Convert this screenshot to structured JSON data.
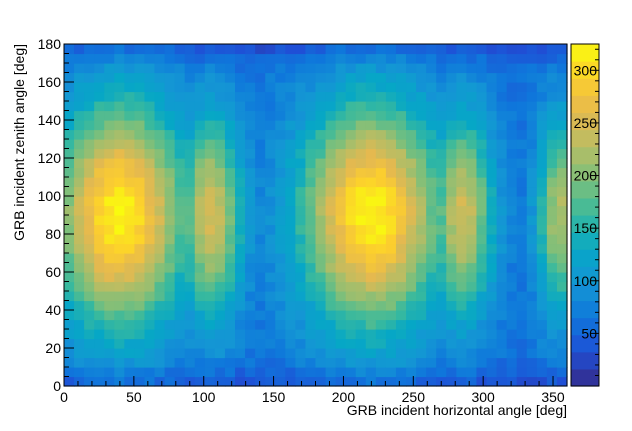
{
  "chart_data": {
    "type": "heatmap",
    "title": "",
    "xlabel": "GRB incident horizontal angle [deg]",
    "ylabel": "GRB incident zenith angle [deg]",
    "xlim": [
      0,
      360
    ],
    "ylim": [
      0,
      180
    ],
    "x_ticks": [
      "0",
      "50",
      "100",
      "150",
      "200",
      "250",
      "300",
      "350"
    ],
    "y_ticks": [
      "0",
      "20",
      "40",
      "60",
      "80",
      "100",
      "120",
      "140",
      "160",
      "180"
    ],
    "colorbar": {
      "range": [
        0,
        325
      ],
      "ticks": [
        "50",
        "100",
        "150",
        "200",
        "250",
        "300"
      ],
      "palette": [
        "#352a87",
        "#1f4fd6",
        "#0f77db",
        "#1496d4",
        "#06a7c6",
        "#38b99e",
        "#7cbf7b",
        "#b7bd64",
        "#e5b94f",
        "#fcce2e",
        "#f9fb0e"
      ]
    },
    "bins": {
      "x_count": 50,
      "y_count": 36,
      "x_width_deg": 7.2,
      "y_width_deg": 5
    },
    "series": [
      {
        "type": "ellipse_peak",
        "x_center": 40,
        "y_center": 90,
        "x_sigma": 34,
        "y_sigma": 42,
        "peak": 320
      },
      {
        "type": "ellipse_peak",
        "x_center": 220,
        "y_center": 90,
        "x_sigma": 36,
        "y_sigma": 42,
        "peak": 320
      },
      {
        "type": "ellipse_peak",
        "x_center": 105,
        "y_center": 90,
        "x_sigma": 16,
        "y_sigma": 38,
        "peak": 250
      },
      {
        "type": "ellipse_peak",
        "x_center": 285,
        "y_center": 90,
        "x_sigma": 16,
        "y_sigma": 38,
        "peak": 245
      },
      {
        "type": "ellipse_peak",
        "x_center": 355,
        "y_center": 90,
        "x_sigma": 12,
        "y_sigma": 36,
        "peak": 225
      }
    ],
    "baseline_value": 60
  }
}
